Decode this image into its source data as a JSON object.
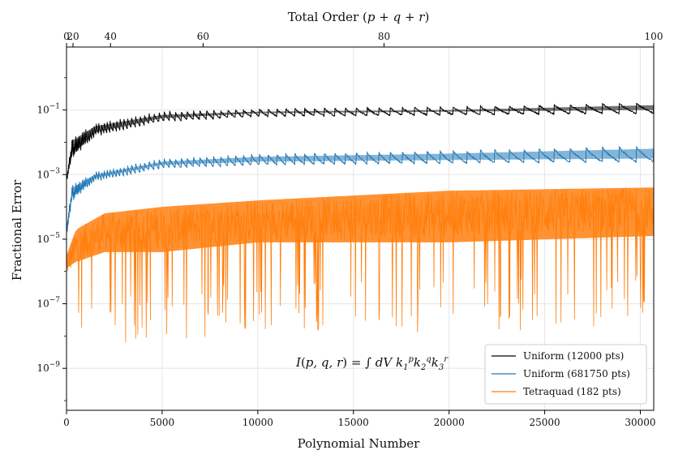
{
  "chart_data": {
    "type": "line",
    "xlabel": "Polynomial Number",
    "ylabel": "Fractional Error",
    "top_xlabel": "Total Order (p + q + r)",
    "xlim": [
      0,
      30700
    ],
    "ylim_log10": [
      -10.3,
      0.95
    ],
    "y_scale": "log",
    "grid": true,
    "legend_position": "lower right",
    "x_ticks": [
      0,
      5000,
      10000,
      15000,
      20000,
      25000,
      30000
    ],
    "x_tick_labels": [
      "0",
      "5000",
      "10000",
      "15000",
      "20000",
      "25000",
      "30000"
    ],
    "y_ticks_log10": [
      -1,
      -3,
      -5,
      -7,
      -9
    ],
    "y_tick_labels": [
      "10^-1",
      "10^-3",
      "10^-5",
      "10^-7",
      "10^-9"
    ],
    "top_ticks": [
      {
        "label": "0",
        "x": 0
      },
      {
        "label": "20",
        "x": 340
      },
      {
        "label": "40",
        "x": 2300
      },
      {
        "label": "60",
        "x": 7140
      },
      {
        "label": "80",
        "x": 16600
      },
      {
        "label": "100",
        "x": 30700
      }
    ],
    "annotation": "I(p,q,r) = ∫ dV k1^p k2^q k3^r",
    "series": [
      {
        "name": "Uniform (12000 pts)",
        "color": "#000000",
        "envelope_log10": {
          "x": [
            0,
            300,
            1500,
            5000,
            10000,
            20000,
            30700
          ],
          "upper": [
            -3.0,
            -1.85,
            -1.4,
            -1.05,
            -0.95,
            -0.9,
            -0.75
          ],
          "lower": [
            -3.3,
            -2.5,
            -1.8,
            -1.35,
            -1.2,
            -1.15,
            -1.1
          ]
        }
      },
      {
        "name": "Uniform (681750 pts)",
        "color": "#1f77b4",
        "envelope_log10": {
          "x": [
            0,
            300,
            1500,
            5000,
            10000,
            20000,
            30700
          ],
          "upper": [
            -4.5,
            -3.3,
            -2.9,
            -2.5,
            -2.35,
            -2.25,
            -2.1
          ],
          "lower": [
            -5.0,
            -3.8,
            -3.2,
            -2.8,
            -2.7,
            -2.65,
            -2.6
          ]
        }
      },
      {
        "name": "Tetraquad (182 pts)",
        "color": "#ff7f0e",
        "envelope_log10": {
          "x": [
            0,
            500,
            2000,
            5000,
            10000,
            20000,
            30700
          ],
          "upper": [
            -5.5,
            -4.7,
            -4.2,
            -4.0,
            -3.8,
            -3.5,
            -3.4
          ],
          "lower": [
            -6.5,
            -6.3,
            -6.0,
            -6.0,
            -5.7,
            -5.7,
            -5.5
          ]
        }
      }
    ]
  }
}
